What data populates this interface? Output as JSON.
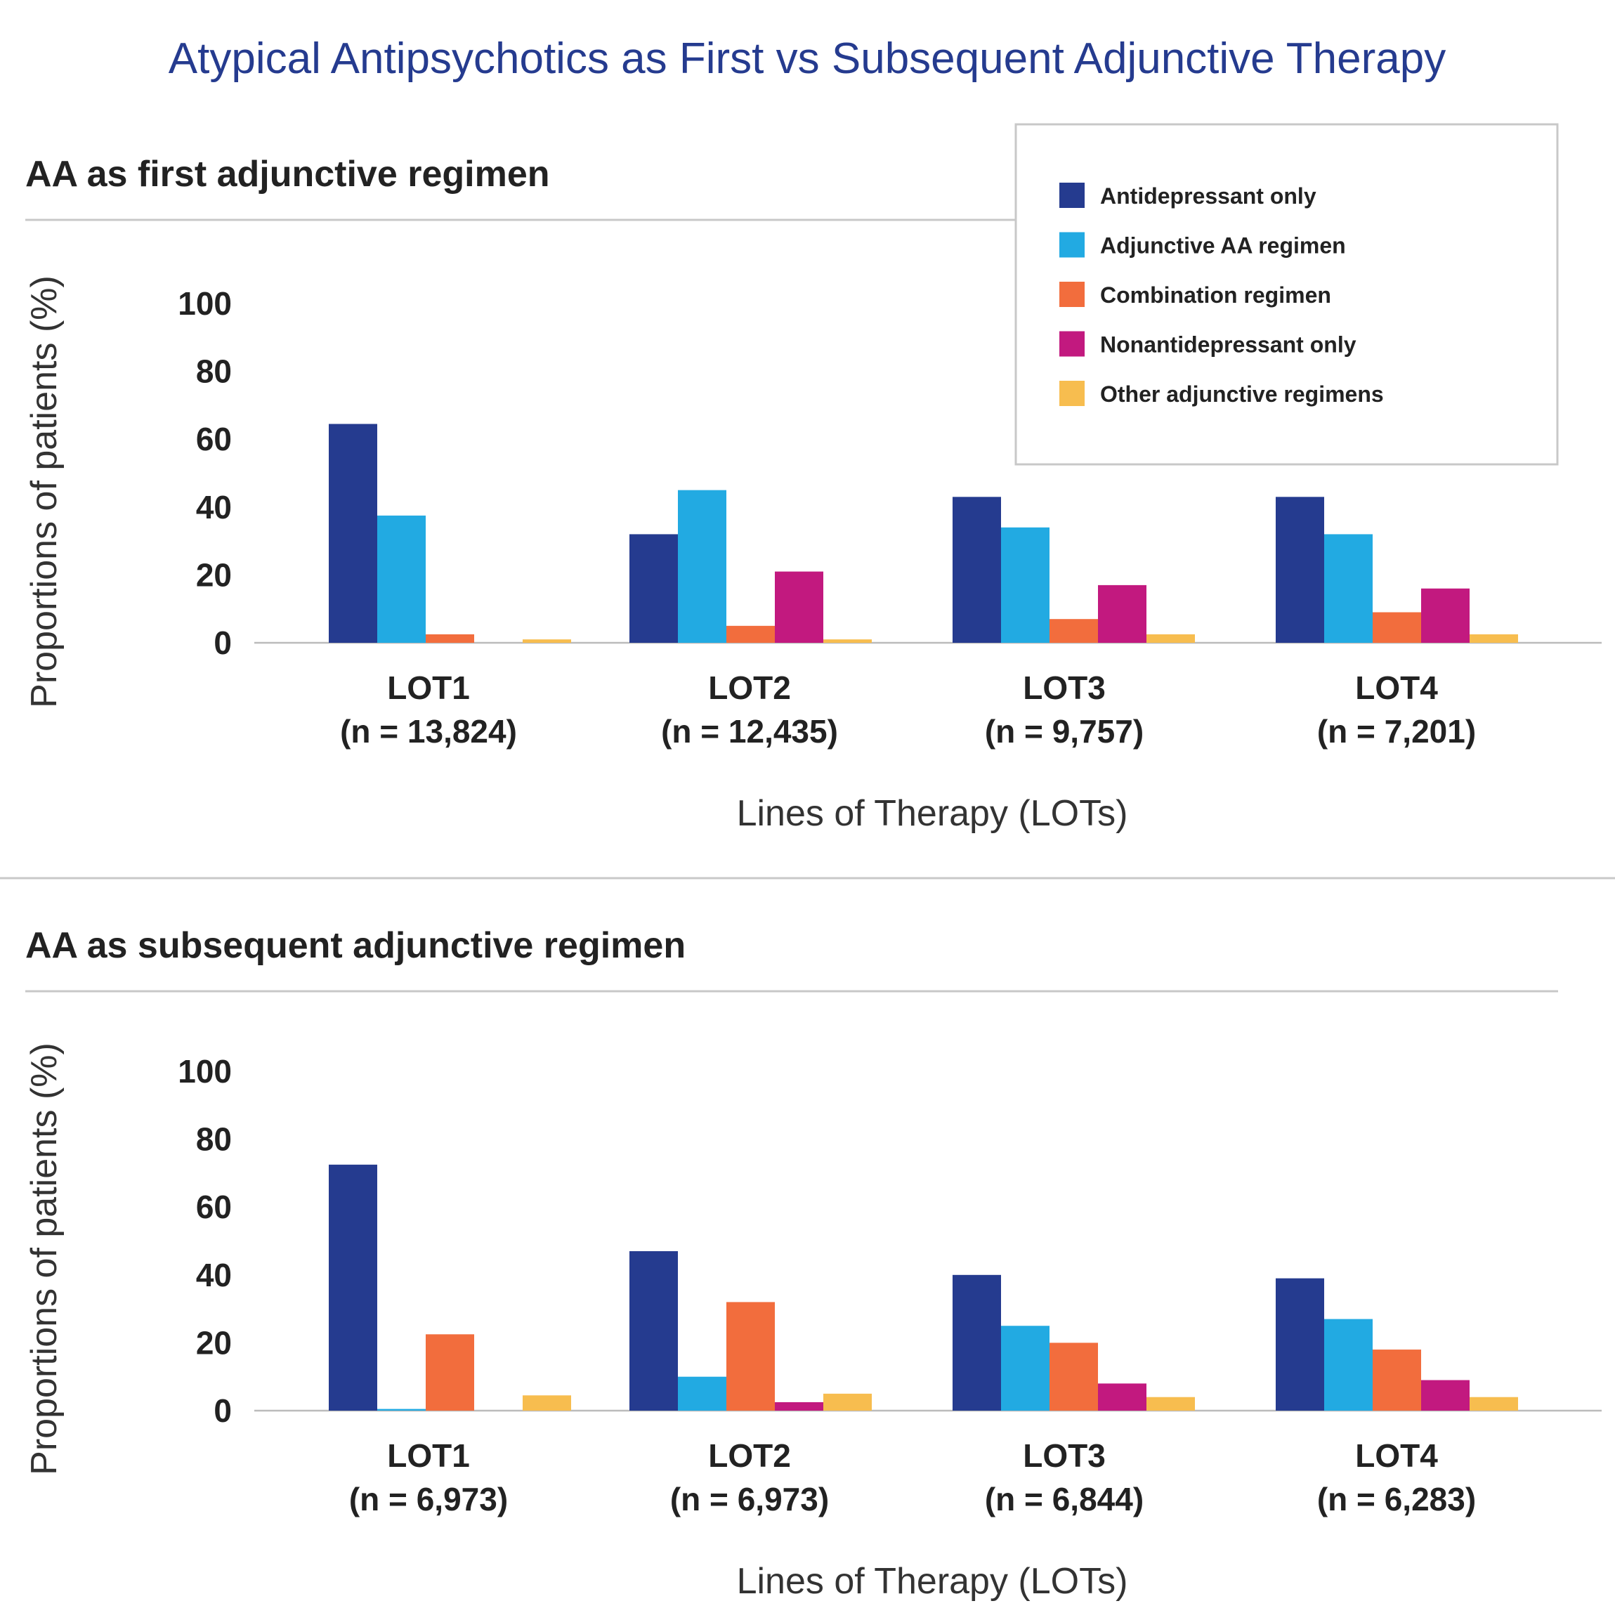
{
  "title": "Atypical Antipsychotics as First vs Subsequent Adjunctive Therapy",
  "legend": {
    "entries": [
      {
        "label": "Antidepressant only",
        "color": "#253b8f"
      },
      {
        "label": "Adjunctive AA regimen",
        "color": "#22aae2"
      },
      {
        "label": "Combination regimen",
        "color": "#f26d3d"
      },
      {
        "label": "Nonantidepressant only",
        "color": "#c2197f"
      },
      {
        "label": "Other adjunctive regimens",
        "color": "#f7bd4f"
      }
    ]
  },
  "chart_data": [
    {
      "type": "bar",
      "title": "AA as first adjunctive regimen",
      "ylabel": "Proportions of patients (%)",
      "xlabel": "Lines of Therapy (LOTs)",
      "ylim": [
        0,
        100
      ],
      "yticks": [
        0,
        20,
        40,
        60,
        80,
        100
      ],
      "categories": [
        {
          "name": "LOT1",
          "n": "(n = 13,824)"
        },
        {
          "name": "LOT2",
          "n": "(n = 12,435)"
        },
        {
          "name": "LOT3",
          "n": "(n = 9,757)"
        },
        {
          "name": "LOT4",
          "n": "(n = 7,201)"
        }
      ],
      "series": [
        {
          "name": "Antidepressant only",
          "values": [
            64.5,
            32,
            43,
            43
          ]
        },
        {
          "name": "Adjunctive AA regimen",
          "values": [
            37.5,
            45,
            34,
            32
          ]
        },
        {
          "name": "Combination regimen",
          "values": [
            2.5,
            5,
            7,
            9
          ]
        },
        {
          "name": "Nonantidepressant only",
          "values": [
            0,
            21,
            17,
            16
          ]
        },
        {
          "name": "Other adjunctive regimens",
          "values": [
            1,
            1,
            2.5,
            2.5
          ]
        }
      ]
    },
    {
      "type": "bar",
      "title": "AA as subsequent adjunctive regimen",
      "ylabel": "Proportions of patients (%)",
      "xlabel": "Lines of Therapy (LOTs)",
      "ylim": [
        0,
        100
      ],
      "yticks": [
        0,
        20,
        40,
        60,
        80,
        100
      ],
      "categories": [
        {
          "name": "LOT1",
          "n": "(n = 6,973)"
        },
        {
          "name": "LOT2",
          "n": "(n = 6,973)"
        },
        {
          "name": "LOT3",
          "n": "(n = 6,844)"
        },
        {
          "name": "LOT4",
          "n": "(n = 6,283)"
        }
      ],
      "series": [
        {
          "name": "Antidepressant only",
          "values": [
            72.5,
            47,
            40,
            39
          ]
        },
        {
          "name": "Adjunctive AA regimen",
          "values": [
            0.5,
            10,
            25,
            27
          ]
        },
        {
          "name": "Combination regimen",
          "values": [
            22.5,
            32,
            20,
            18
          ]
        },
        {
          "name": "Nonantidepressant only",
          "values": [
            0,
            2.5,
            8,
            9
          ]
        },
        {
          "name": "Other adjunctive regimens",
          "values": [
            4.5,
            5,
            4,
            4
          ]
        }
      ]
    }
  ]
}
